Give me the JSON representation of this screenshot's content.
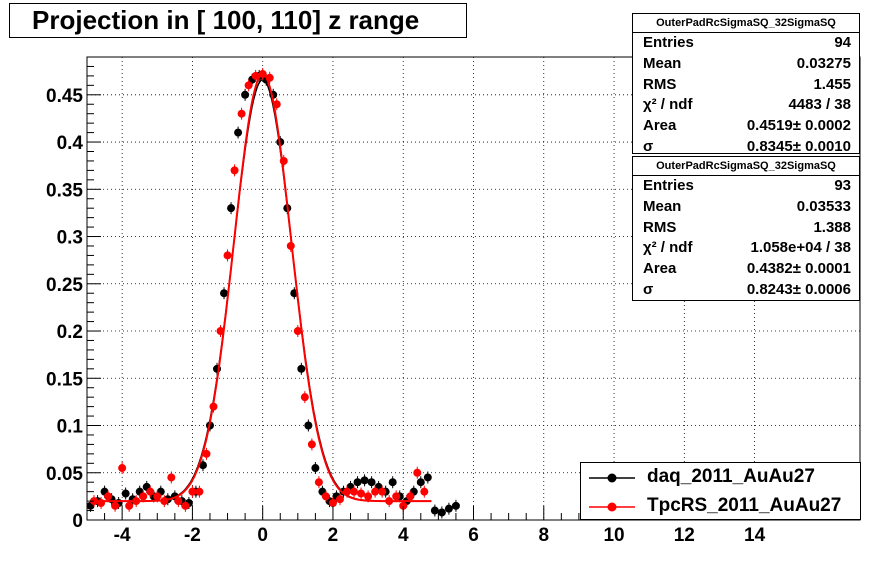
{
  "title": "Projection in [ 100, 110] z range",
  "stats": [
    {
      "name": "OuterPadRcSigmaSQ_32SigmaSQ",
      "rows": [
        {
          "label": "Entries",
          "value": "94"
        },
        {
          "label": "Mean",
          "value": "0.03275"
        },
        {
          "label": "RMS",
          "value": "1.455"
        },
        {
          "label": "χ² / ndf",
          "value": "4483 / 38"
        },
        {
          "label": "Area",
          "value": "0.4519± 0.0002"
        },
        {
          "label": "σ",
          "value": "0.8345± 0.0010"
        }
      ]
    },
    {
      "name": "OuterPadRcSigmaSQ_32SigmaSQ",
      "rows": [
        {
          "label": "Entries",
          "value": "93"
        },
        {
          "label": "Mean",
          "value": "0.03533"
        },
        {
          "label": "RMS",
          "value": "1.388"
        },
        {
          "label": "χ² / ndf",
          "value": "1.058e+04 / 38"
        },
        {
          "label": "Area",
          "value": "0.4382± 0.0001"
        },
        {
          "label": "σ",
          "value": "0.8243± 0.0006"
        }
      ]
    }
  ],
  "legend": [
    {
      "label": "daq_2011_AuAu27",
      "color": "#000000"
    },
    {
      "label": "TpcRS_2011_AuAu27",
      "color": "#ff0000"
    }
  ],
  "chart_data": {
    "type": "scatter",
    "title": "Projection in [ 100, 110] z range",
    "xlim": [
      -5,
      17
    ],
    "ylim": [
      0,
      0.49
    ],
    "grid": true,
    "legend_position": "bottom-right",
    "x_ticks": [
      -4,
      -2,
      0,
      2,
      4,
      6,
      8,
      10,
      12,
      14
    ],
    "x_tick_labels": [
      "-4",
      "-2",
      "0",
      "2",
      "4",
      "6",
      "8",
      "10",
      "12",
      "14"
    ],
    "y_ticks": [
      0,
      0.05,
      0.1,
      0.15,
      0.2,
      0.25,
      0.3,
      0.35,
      0.4,
      0.45
    ],
    "y_tick_labels": [
      "0",
      "0.05",
      "0.1",
      "0.15",
      "0.2",
      "0.25",
      "0.3",
      "0.35",
      "0.4",
      "0.45"
    ],
    "series": [
      {
        "name": "daq_2011_AuAu27",
        "color": "#000000",
        "sigma": 0.8345,
        "peak": 0.466,
        "x": [
          -4.9,
          -4.7,
          -4.5,
          -4.3,
          -4.1,
          -3.9,
          -3.7,
          -3.5,
          -3.3,
          -3.1,
          -2.9,
          -2.7,
          -2.5,
          -2.3,
          -2.1,
          -1.9,
          -1.7,
          -1.5,
          -1.3,
          -1.1,
          -0.9,
          -0.7,
          -0.5,
          -0.3,
          -0.1,
          0.1,
          0.3,
          0.5,
          0.7,
          0.9,
          1.1,
          1.3,
          1.5,
          1.7,
          1.9,
          2.1,
          2.3,
          2.5,
          2.7,
          2.9,
          3.1,
          3.3,
          3.5,
          3.7,
          3.9,
          4.1,
          4.3,
          4.5,
          4.7,
          4.9,
          5.1,
          5.3,
          5.5
        ],
        "y": [
          0.015,
          0.02,
          0.03,
          0.022,
          0.018,
          0.028,
          0.022,
          0.03,
          0.035,
          0.025,
          0.03,
          0.022,
          0.025,
          0.02,
          0.018,
          0.03,
          0.058,
          0.1,
          0.16,
          0.24,
          0.33,
          0.41,
          0.45,
          0.466,
          0.47,
          0.466,
          0.45,
          0.4,
          0.33,
          0.24,
          0.16,
          0.1,
          0.055,
          0.03,
          0.02,
          0.025,
          0.03,
          0.035,
          0.04,
          0.042,
          0.04,
          0.035,
          0.03,
          0.04,
          0.025,
          0.02,
          0.03,
          0.04,
          0.045,
          0.01,
          0.008,
          0.012,
          0.015
        ]
      },
      {
        "name": "TpcRS_2011_AuAu27",
        "color": "#ff0000",
        "sigma": 0.8243,
        "peak": 0.472,
        "x": [
          -4.8,
          -4.6,
          -4.4,
          -4.2,
          -4.0,
          -3.8,
          -3.6,
          -3.4,
          -3.2,
          -3.0,
          -2.8,
          -2.6,
          -2.4,
          -2.2,
          -2.0,
          -1.8,
          -1.6,
          -1.4,
          -1.2,
          -1.0,
          -0.8,
          -0.6,
          -0.4,
          -0.2,
          0.0,
          0.2,
          0.4,
          0.6,
          0.8,
          1.0,
          1.2,
          1.4,
          1.6,
          1.8,
          2.0,
          2.2,
          2.4,
          2.6,
          2.8,
          3.0,
          3.2,
          3.4,
          3.6,
          3.8,
          4.0,
          4.2,
          4.4,
          4.6
        ],
        "y": [
          0.02,
          0.018,
          0.025,
          0.015,
          0.055,
          0.015,
          0.02,
          0.025,
          0.03,
          0.025,
          0.02,
          0.045,
          0.02,
          0.015,
          0.03,
          0.03,
          0.07,
          0.12,
          0.2,
          0.28,
          0.37,
          0.43,
          0.46,
          0.47,
          0.472,
          0.468,
          0.44,
          0.38,
          0.29,
          0.2,
          0.13,
          0.08,
          0.04,
          0.025,
          0.018,
          0.022,
          0.03,
          0.03,
          0.028,
          0.025,
          0.03,
          0.03,
          0.02,
          0.025,
          0.015,
          0.025,
          0.05,
          0.03
        ]
      }
    ]
  }
}
